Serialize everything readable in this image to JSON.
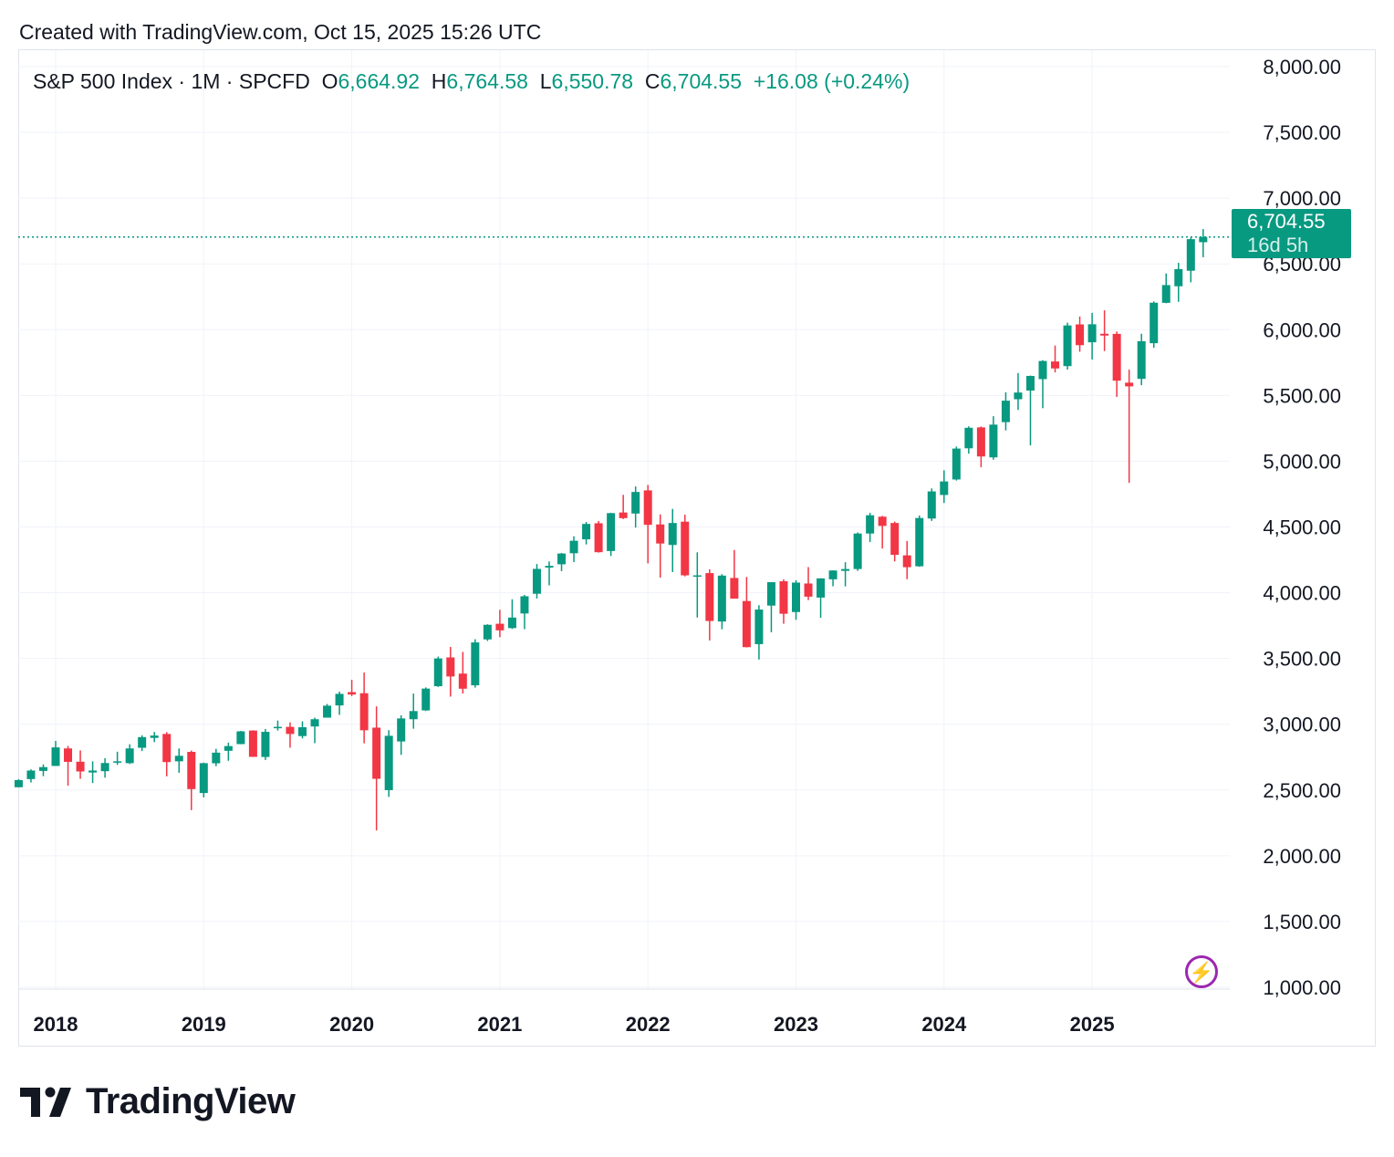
{
  "header": {
    "created": "Created with TradingView.com, Oct 15, 2025 15:26 UTC"
  },
  "legend": {
    "symbol": "S&P 500 Index · 1M · SPCFD",
    "open_label": "O",
    "open": "6,664.92",
    "high_label": "H",
    "high": "6,764.58",
    "low_label": "L",
    "low": "6,550.78",
    "close_label": "C",
    "close": "6,704.55",
    "change": "+16.08 (+0.24%)"
  },
  "price_label": {
    "price": "6,704.55",
    "countdown": "16d 5h"
  },
  "brand": {
    "name": "TradingView"
  },
  "colors": {
    "up": "#089981",
    "down": "#F23645",
    "grid": "#f0f3fa",
    "accent": "#9c27b0"
  },
  "icons": {
    "logo": "tradingview-logo",
    "snapshot": "lightning-icon"
  },
  "chart_data": {
    "type": "candlestick",
    "interval": "1M",
    "ylim": [
      1000,
      8000
    ],
    "y_ticks": [
      "1,000.00",
      "1,500.00",
      "2,000.00",
      "2,500.00",
      "3,000.00",
      "3,500.00",
      "4,000.00",
      "4,500.00",
      "5,000.00",
      "5,500.00",
      "6,000.00",
      "6,500.00",
      "7,000.00",
      "7,500.00",
      "8,000.00"
    ],
    "x_ticks": [
      "2018",
      "2019",
      "2020",
      "2021",
      "2022",
      "2023",
      "2024",
      "2025"
    ],
    "last_price": 6704.55,
    "grid": true,
    "candles_fields": [
      "month",
      "open",
      "high",
      "low",
      "close"
    ],
    "candles": [
      [
        "2017-10",
        2521,
        2582,
        2520,
        2575
      ],
      [
        "2017-11",
        2583,
        2657,
        2557,
        2648
      ],
      [
        "2017-12",
        2645,
        2695,
        2605,
        2674
      ],
      [
        "2018-01",
        2683,
        2873,
        2682,
        2824
      ],
      [
        "2018-02",
        2816,
        2835,
        2533,
        2714
      ],
      [
        "2018-03",
        2715,
        2801,
        2585,
        2641
      ],
      [
        "2018-04",
        2633,
        2718,
        2553,
        2648
      ],
      [
        "2018-05",
        2643,
        2742,
        2594,
        2705
      ],
      [
        "2018-06",
        2718,
        2791,
        2691,
        2718
      ],
      [
        "2018-07",
        2704,
        2848,
        2698,
        2816
      ],
      [
        "2018-08",
        2821,
        2916,
        2796,
        2902
      ],
      [
        "2018-09",
        2896,
        2941,
        2864,
        2914
      ],
      [
        "2018-10",
        2926,
        2940,
        2604,
        2712
      ],
      [
        "2018-11",
        2718,
        2816,
        2631,
        2760
      ],
      [
        "2018-12",
        2790,
        2800,
        2347,
        2507
      ],
      [
        "2019-01",
        2477,
        2708,
        2444,
        2704
      ],
      [
        "2019-02",
        2703,
        2813,
        2681,
        2784
      ],
      [
        "2019-03",
        2798,
        2860,
        2722,
        2834
      ],
      [
        "2019-04",
        2849,
        2949,
        2848,
        2946
      ],
      [
        "2019-05",
        2952,
        2954,
        2751,
        2752
      ],
      [
        "2019-06",
        2751,
        2964,
        2728,
        2942
      ],
      [
        "2019-07",
        2971,
        3028,
        2952,
        2980
      ],
      [
        "2019-08",
        2980,
        3014,
        2822,
        2926
      ],
      [
        "2019-09",
        2910,
        3022,
        2892,
        2977
      ],
      [
        "2019-10",
        2983,
        3050,
        2856,
        3038
      ],
      [
        "2019-11",
        3050,
        3154,
        3050,
        3141
      ],
      [
        "2019-12",
        3143,
        3248,
        3071,
        3231
      ],
      [
        "2020-01",
        3244,
        3338,
        3214,
        3226
      ],
      [
        "2020-02",
        3236,
        3393,
        2855,
        2954
      ],
      [
        "2020-03",
        2974,
        3136,
        2192,
        2585
      ],
      [
        "2020-04",
        2499,
        2955,
        2448,
        2912
      ],
      [
        "2020-05",
        2869,
        3068,
        2767,
        3044
      ],
      [
        "2020-06",
        3038,
        3233,
        2966,
        3100
      ],
      [
        "2020-07",
        3105,
        3280,
        3101,
        3271
      ],
      [
        "2020-08",
        3289,
        3514,
        3284,
        3500
      ],
      [
        "2020-09",
        3508,
        3588,
        3210,
        3363
      ],
      [
        "2020-10",
        3385,
        3550,
        3234,
        3270
      ],
      [
        "2020-11",
        3296,
        3646,
        3279,
        3622
      ],
      [
        "2020-12",
        3645,
        3760,
        3633,
        3756
      ],
      [
        "2021-01",
        3764,
        3870,
        3662,
        3714
      ],
      [
        "2021-02",
        3731,
        3950,
        3725,
        3811
      ],
      [
        "2021-03",
        3842,
        3983,
        3723,
        3973
      ],
      [
        "2021-04",
        3992,
        4218,
        3956,
        4181
      ],
      [
        "2021-05",
        4191,
        4238,
        4056,
        4204
      ],
      [
        "2021-06",
        4216,
        4302,
        4164,
        4298
      ],
      [
        "2021-07",
        4300,
        4429,
        4233,
        4395
      ],
      [
        "2021-08",
        4406,
        4538,
        4367,
        4523
      ],
      [
        "2021-09",
        4528,
        4546,
        4305,
        4308
      ],
      [
        "2021-10",
        4317,
        4608,
        4279,
        4605
      ],
      [
        "2021-11",
        4610,
        4744,
        4560,
        4567
      ],
      [
        "2021-12",
        4602,
        4808,
        4495,
        4766
      ],
      [
        "2022-01",
        4778,
        4819,
        4223,
        4516
      ],
      [
        "2022-02",
        4519,
        4595,
        4115,
        4374
      ],
      [
        "2022-03",
        4363,
        4637,
        4157,
        4530
      ],
      [
        "2022-04",
        4540,
        4593,
        4124,
        4132
      ],
      [
        "2022-05",
        4130,
        4307,
        3811,
        4132
      ],
      [
        "2022-06",
        4149,
        4178,
        3637,
        3785
      ],
      [
        "2022-07",
        3781,
        4141,
        3722,
        4130
      ],
      [
        "2022-08",
        4112,
        4325,
        3955,
        3955
      ],
      [
        "2022-09",
        3937,
        4120,
        3584,
        3586
      ],
      [
        "2022-10",
        3609,
        3905,
        3492,
        3872
      ],
      [
        "2022-11",
        3902,
        4080,
        3699,
        4080
      ],
      [
        "2022-12",
        4087,
        4101,
        3764,
        3840
      ],
      [
        "2023-01",
        3853,
        4095,
        3794,
        4077
      ],
      [
        "2023-02",
        4070,
        4195,
        3944,
        3970
      ],
      [
        "2023-03",
        3963,
        4110,
        3809,
        4109
      ],
      [
        "2023-04",
        4102,
        4170,
        4049,
        4169
      ],
      [
        "2023-05",
        4166,
        4232,
        4048,
        4180
      ],
      [
        "2023-06",
        4180,
        4458,
        4166,
        4450
      ],
      [
        "2023-07",
        4450,
        4607,
        4385,
        4589
      ],
      [
        "2023-08",
        4578,
        4584,
        4336,
        4508
      ],
      [
        "2023-09",
        4530,
        4541,
        4238,
        4288
      ],
      [
        "2023-10",
        4284,
        4393,
        4103,
        4194
      ],
      [
        "2023-11",
        4201,
        4587,
        4197,
        4568
      ],
      [
        "2023-12",
        4564,
        4793,
        4546,
        4770
      ],
      [
        "2024-01",
        4743,
        4931,
        4682,
        4846
      ],
      [
        "2024-02",
        4861,
        5111,
        4853,
        5096
      ],
      [
        "2024-03",
        5098,
        5265,
        5057,
        5254
      ],
      [
        "2024-04",
        5257,
        5264,
        4954,
        5036
      ],
      [
        "2024-05",
        5029,
        5342,
        5011,
        5278
      ],
      [
        "2024-06",
        5297,
        5524,
        5234,
        5460
      ],
      [
        "2024-07",
        5471,
        5670,
        5390,
        5522
      ],
      [
        "2024-08",
        5537,
        5651,
        5120,
        5648
      ],
      [
        "2024-09",
        5624,
        5768,
        5403,
        5762
      ],
      [
        "2024-10",
        5758,
        5879,
        5675,
        5705
      ],
      [
        "2024-11",
        5723,
        6053,
        5696,
        6032
      ],
      [
        "2024-12",
        6040,
        6100,
        5832,
        5882
      ],
      [
        "2025-01",
        5904,
        6128,
        5773,
        6041
      ],
      [
        "2025-02",
        5969,
        6147,
        5837,
        5955
      ],
      [
        "2025-03",
        5968,
        5986,
        5489,
        5612
      ],
      [
        "2025-04",
        5597,
        5696,
        4835,
        5569
      ],
      [
        "2025-05",
        5626,
        5969,
        5578,
        5912
      ],
      [
        "2025-06",
        5897,
        6215,
        5862,
        6205
      ],
      [
        "2025-07",
        6204,
        6427,
        6201,
        6339
      ],
      [
        "2025-08",
        6330,
        6508,
        6212,
        6460
      ],
      [
        "2025-09",
        6448,
        6700,
        6360,
        6688
      ],
      [
        "2025-10",
        6664.92,
        6764.58,
        6550.78,
        6704.55
      ]
    ]
  }
}
